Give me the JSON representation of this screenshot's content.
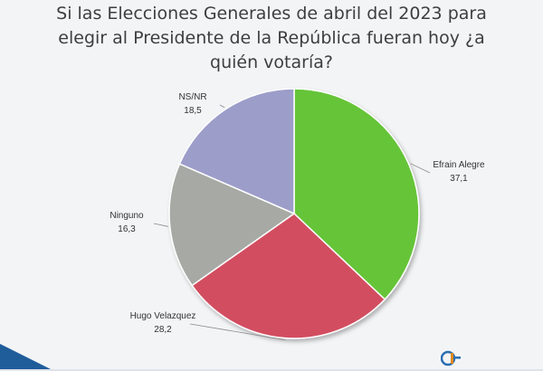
{
  "chart_data": {
    "type": "pie",
    "title_lines": [
      "Si las Elecciones Generales de abril del 2023 para",
      "elegir al  Presidente de la República fueran hoy ¿a",
      "quién votaría?"
    ],
    "slices": [
      {
        "label": "Efrain Alegre",
        "value": 37.1,
        "value_text": "37,1",
        "color": "#66c437"
      },
      {
        "label": "Hugo Velazquez",
        "value": 28.2,
        "value_text": "28,2",
        "color": "#d24e61"
      },
      {
        "label": "Ninguno",
        "value": 16.3,
        "value_text": "16,3",
        "color": "#a6a9a4"
      },
      {
        "label": "NS/NR",
        "value": 18.5,
        "value_text": "18,5",
        "color": "#9c9dc9"
      }
    ],
    "start_angle_deg": 0,
    "direction": "clockwise",
    "label_position": "outside"
  },
  "footer": {
    "band_color": "#1f5c9a",
    "logo_icon": "brand-logo-icon"
  }
}
